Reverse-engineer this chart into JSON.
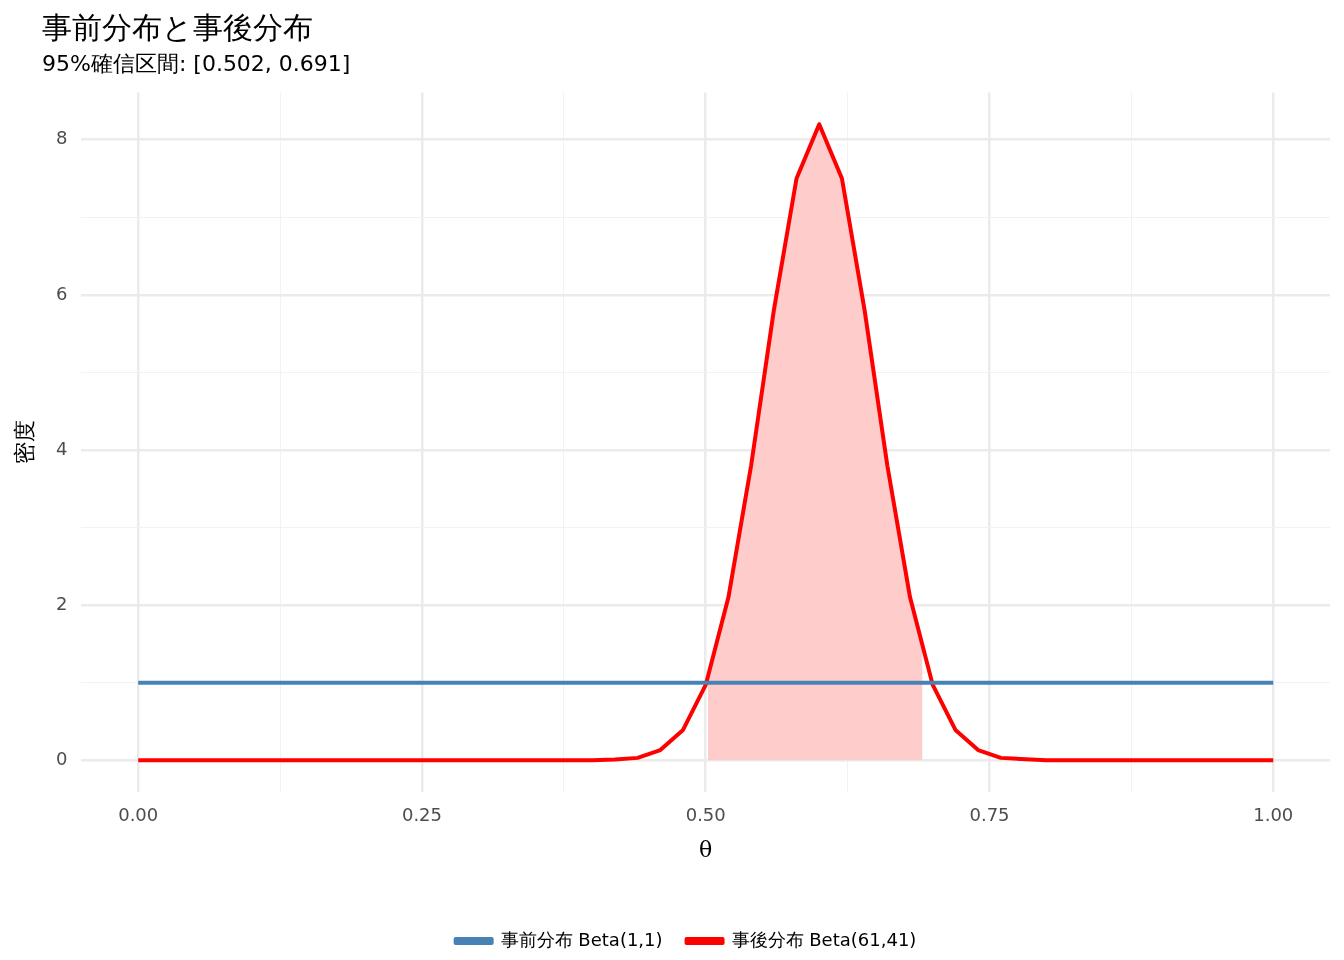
{
  "chart_data": {
    "type": "line",
    "title": "事前分布と事後分布",
    "subtitle": "95%確信区間: [0.502, 0.691]",
    "xlabel": "θ",
    "ylabel": "密度",
    "xlim": [
      -0.05,
      1.05
    ],
    "xticks": [
      {
        "value": 0,
        "label": "0.00"
      },
      {
        "value": 0.125,
        "label": null
      },
      {
        "value": 0.25,
        "label": "0.25"
      },
      {
        "value": 0.375,
        "label": null
      },
      {
        "value": 0.5,
        "label": "0.50"
      },
      {
        "value": 0.625,
        "label": null
      },
      {
        "value": 0.75,
        "label": "0.75"
      },
      {
        "value": 0.875,
        "label": null
      },
      {
        "value": 1,
        "label": "1.00"
      }
    ],
    "ylim": [
      -0.41,
      8.61
    ],
    "yticks": [
      0,
      {
        "value": 1,
        "label": null
      },
      2,
      {
        "value": 3,
        "label": null
      },
      4,
      {
        "value": 5,
        "label": null
      },
      6,
      {
        "value": 7,
        "label": null
      },
      8
    ],
    "grid": true,
    "legend": "bottom",
    "marker": "none",
    "line_style": "solid",
    "series": [
      {
        "type": "area",
        "color": "#ffcccc",
        "x": [
          0.502,
          0.52,
          0.54,
          0.56,
          0.58,
          0.6,
          0.62,
          0.64,
          0.66,
          0.68,
          0.691
        ],
        "values": [
          1.0,
          2.1,
          3.8,
          5.8,
          7.5,
          8.2,
          7.5,
          5.8,
          3.8,
          2.1,
          1.4
        ]
      },
      {
        "name": "事前分布 Beta(1,1)",
        "color": "#4682b4",
        "x": [
          0,
          1
        ],
        "values": [
          1,
          1
        ]
      },
      {
        "name": "事後分布 Beta(61,41)",
        "color": "#ff0000",
        "x": [
          0,
          0.1,
          0.2,
          0.3,
          0.4,
          0.42,
          0.44,
          0.46,
          0.48,
          0.5,
          0.52,
          0.54,
          0.56,
          0.58,
          0.6,
          0.62,
          0.64,
          0.66,
          0.68,
          0.7,
          0.72,
          0.74,
          0.76,
          0.8,
          0.9,
          1
        ],
        "values": [
          0,
          0,
          0,
          0,
          0,
          0.01,
          0.03,
          0.13,
          0.39,
          0.97,
          2.1,
          3.8,
          5.8,
          7.5,
          8.2,
          7.5,
          5.8,
          3.8,
          2.1,
          0.97,
          0.39,
          0.13,
          0.03,
          0,
          0,
          0
        ]
      }
    ]
  }
}
